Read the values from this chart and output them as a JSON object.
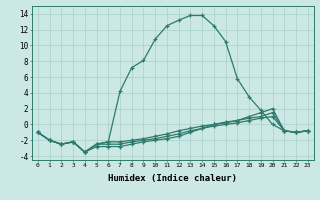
{
  "title": "",
  "xlabel": "Humidex (Indice chaleur)",
  "background_color": "#cce8e4",
  "grid_color": "#aacfc9",
  "line_color": "#2d7a6e",
  "xlim": [
    -0.5,
    23.5
  ],
  "ylim": [
    -4.5,
    15.0
  ],
  "xticks": [
    0,
    1,
    2,
    3,
    4,
    5,
    6,
    7,
    8,
    9,
    10,
    11,
    12,
    13,
    14,
    15,
    16,
    17,
    18,
    19,
    20,
    21,
    22,
    23
  ],
  "yticks": [
    -4,
    -2,
    0,
    2,
    4,
    6,
    8,
    10,
    12,
    14
  ],
  "lines": [
    {
      "x": [
        0,
        1,
        2,
        3,
        4,
        5,
        6,
        7,
        8,
        9,
        10,
        11,
        12,
        13,
        14,
        15,
        16,
        17,
        18,
        19,
        20,
        21,
        22,
        23
      ],
      "y": [
        -1.0,
        -2.0,
        -2.5,
        -2.2,
        -3.5,
        -2.5,
        -2.2,
        4.2,
        7.2,
        8.1,
        10.8,
        12.5,
        13.2,
        13.8,
        13.8,
        12.5,
        10.5,
        5.8,
        3.5,
        1.8,
        0.0,
        -0.8,
        -1.0,
        -0.8
      ]
    },
    {
      "x": [
        0,
        1,
        2,
        3,
        4,
        5,
        6,
        7,
        8,
        9,
        10,
        11,
        12,
        13,
        14,
        15,
        16,
        17,
        18,
        19,
        20,
        21,
        22,
        23
      ],
      "y": [
        -1.0,
        -2.0,
        -2.5,
        -2.2,
        -3.5,
        -2.5,
        -2.2,
        -2.2,
        -2.0,
        -1.8,
        -1.5,
        -1.2,
        -0.8,
        -0.5,
        -0.2,
        0.0,
        0.3,
        0.5,
        0.8,
        1.0,
        1.5,
        -0.8,
        -1.0,
        -0.8
      ]
    },
    {
      "x": [
        0,
        1,
        2,
        3,
        4,
        5,
        6,
        7,
        8,
        9,
        10,
        11,
        12,
        13,
        14,
        15,
        16,
        17,
        18,
        19,
        20,
        21,
        22,
        23
      ],
      "y": [
        -1.0,
        -2.0,
        -2.5,
        -2.2,
        -3.5,
        -2.5,
        -2.5,
        -2.5,
        -2.2,
        -2.0,
        -1.8,
        -1.5,
        -1.2,
        -0.8,
        -0.5,
        -0.2,
        0.0,
        0.2,
        0.5,
        0.8,
        1.0,
        -0.8,
        -1.0,
        -0.8
      ]
    },
    {
      "x": [
        0,
        1,
        2,
        3,
        4,
        5,
        6,
        7,
        8,
        9,
        10,
        11,
        12,
        13,
        14,
        15,
        16,
        17,
        18,
        19,
        20,
        21,
        22,
        23
      ],
      "y": [
        -1.0,
        -2.0,
        -2.5,
        -2.2,
        -3.5,
        -2.8,
        -2.8,
        -2.8,
        -2.5,
        -2.2,
        -2.0,
        -1.8,
        -1.5,
        -1.0,
        -0.5,
        0.0,
        0.2,
        0.5,
        1.0,
        1.5,
        2.0,
        -0.8,
        -1.0,
        -0.8
      ]
    }
  ]
}
